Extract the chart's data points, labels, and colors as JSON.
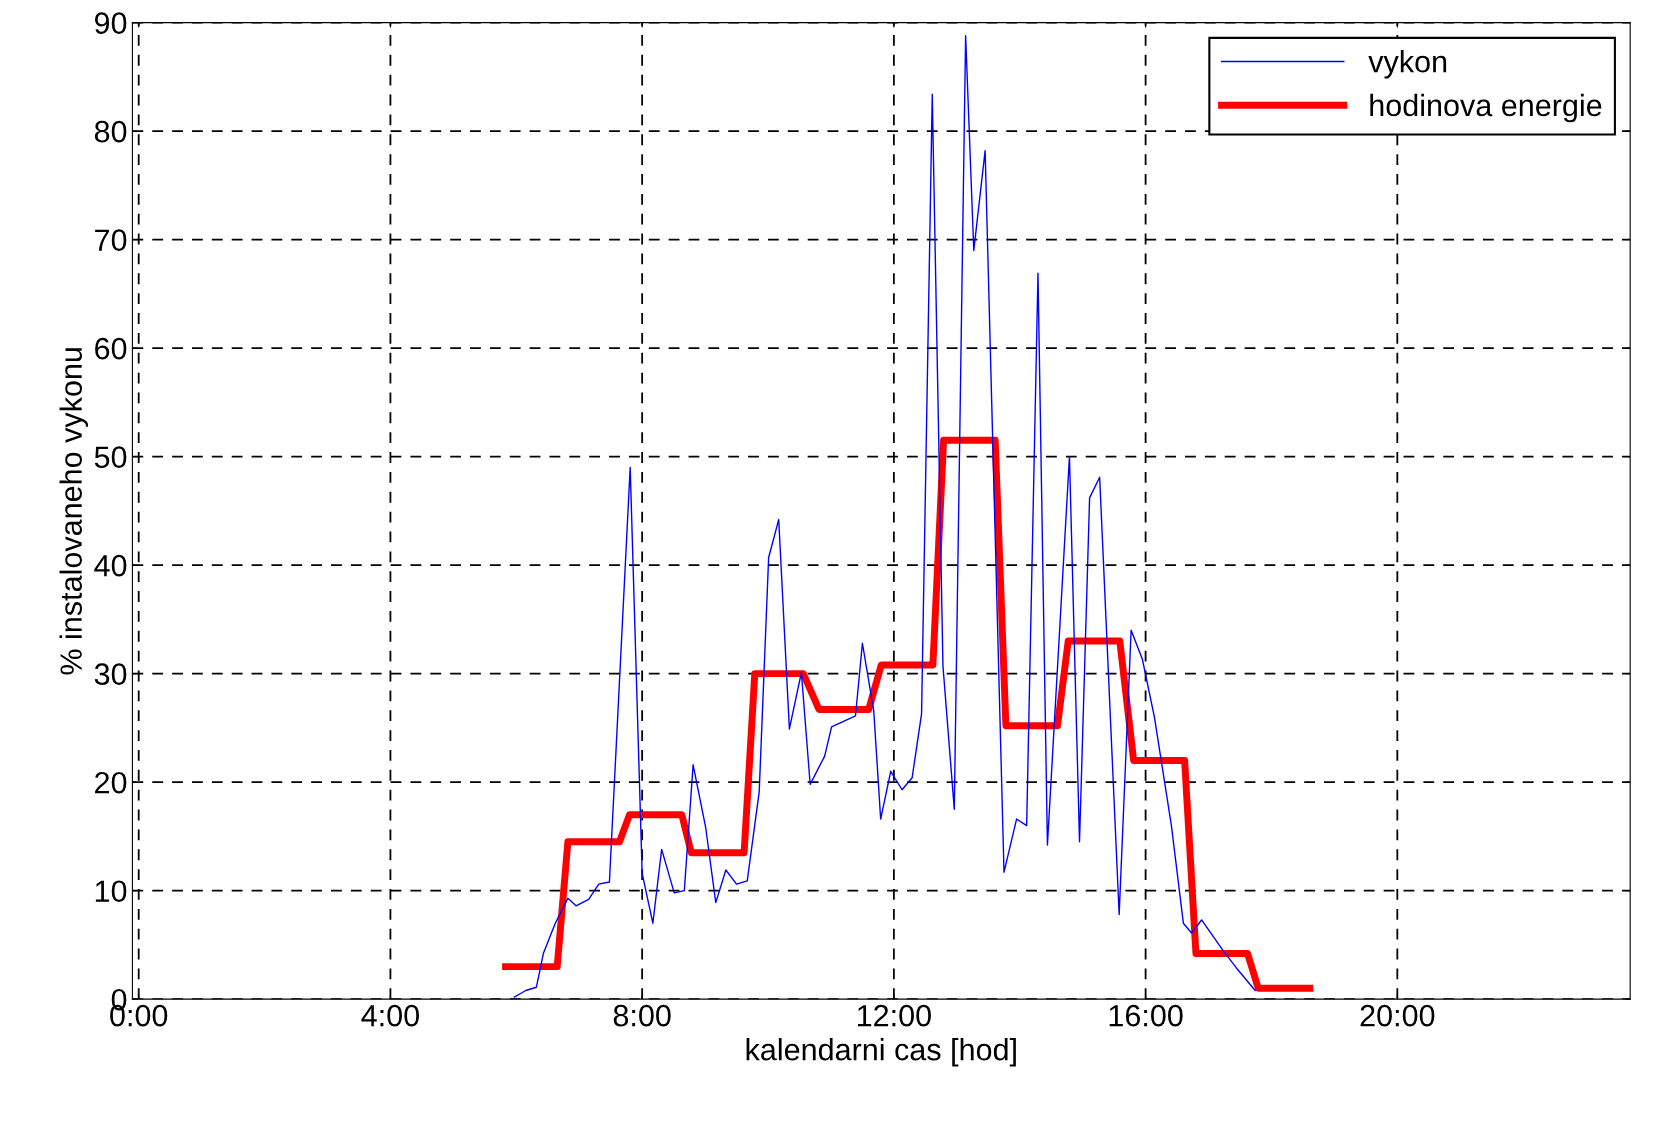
{
  "chart_data": {
    "type": "line",
    "xlabel": "kalendarni cas [hod]",
    "ylabel": "% instalovaneho vykonu",
    "xlim": [
      -0.1,
      23.7
    ],
    "ylim": [
      0,
      90
    ],
    "xticks": [
      {
        "value": 0,
        "label": "0:00"
      },
      {
        "value": 4,
        "label": "4:00"
      },
      {
        "value": 8,
        "label": "8:00"
      },
      {
        "value": 12,
        "label": "12:00"
      },
      {
        "value": 16,
        "label": "16:00"
      },
      {
        "value": 20,
        "label": "20:00"
      }
    ],
    "yticks": [
      0,
      10,
      20,
      30,
      40,
      50,
      60,
      70,
      80,
      90
    ],
    "grid": true,
    "legend": "top right",
    "line_style": "solid",
    "series": [
      {
        "name": "vykon",
        "color": "#0000ff",
        "x": [
          5.97,
          6.15,
          6.32,
          6.43,
          6.62,
          6.82,
          6.95,
          7.15,
          7.31,
          7.48,
          7.81,
          8.0,
          8.17,
          8.31,
          8.51,
          8.67,
          8.81,
          9.01,
          9.17,
          9.33,
          9.5,
          9.67,
          9.86,
          10.01,
          10.17,
          10.34,
          10.53,
          10.67,
          10.9,
          11.01,
          11.39,
          11.5,
          11.68,
          11.79,
          11.95,
          12.13,
          12.29,
          12.44,
          12.61,
          12.78,
          12.96,
          13.14,
          13.27,
          13.45,
          13.75,
          13.95,
          14.11,
          14.29,
          14.44,
          14.79,
          14.95,
          15.11,
          15.27,
          15.58,
          15.77,
          15.95,
          16.14,
          16.41,
          16.6,
          16.73,
          16.89,
          17.24,
          17.44,
          17.74
        ],
        "values": [
          0.2,
          0.8,
          1.1,
          4.2,
          7,
          9.3,
          8.6,
          9.2,
          10.6,
          10.8,
          49,
          11.6,
          7,
          13.8,
          9.8,
          10,
          21.6,
          15.8,
          8.9,
          11.9,
          10.6,
          10.9,
          19.1,
          40.7,
          44.2,
          24.9,
          30.1,
          19.8,
          22.4,
          25.1,
          26.1,
          32.8,
          26.6,
          16.6,
          21,
          19.3,
          20.4,
          26.3,
          83.4,
          30.7,
          17.5,
          88.8,
          69,
          78.2,
          11.7,
          16.6,
          16,
          66.9,
          14.2,
          50,
          14.5,
          46.2,
          48.1,
          7.8,
          34,
          31.3,
          26,
          16,
          7,
          6.1,
          7.3,
          4.4,
          2.9,
          0.8
        ]
      },
      {
        "name": "hodinova energie",
        "color": "#ff0000",
        "x": [
          5.83,
          6.65,
          6.82,
          7.64,
          7.8,
          8.63,
          8.78,
          9.62,
          9.79,
          10.56,
          10.81,
          11.6,
          11.8,
          12.62,
          12.79,
          13.61,
          13.78,
          14.6,
          14.77,
          15.59,
          15.81,
          16.62,
          16.8,
          17.62,
          17.79,
          18.61
        ],
        "values": [
          3,
          3,
          14.5,
          14.5,
          17,
          17,
          13.5,
          13.5,
          30,
          30,
          26.7,
          26.7,
          30.8,
          30.8,
          51.5,
          51.5,
          25.2,
          25.2,
          33,
          33,
          22,
          22,
          4.2,
          4.2,
          1,
          1
        ]
      }
    ]
  }
}
